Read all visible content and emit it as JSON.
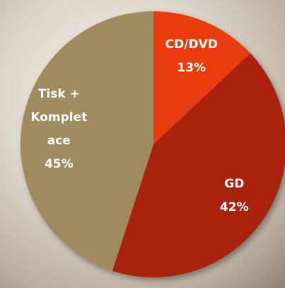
{
  "chart_data": {
    "type": "pie",
    "categories": [
      "CD/DVD",
      "GD",
      "Tisk + Kompletace"
    ],
    "values": [
      13,
      42,
      45
    ],
    "value_labels": [
      "13%",
      "42%",
      "45%"
    ],
    "colors": [
      "#e93a0c",
      "#a8210f",
      "#a08a5e"
    ]
  }
}
